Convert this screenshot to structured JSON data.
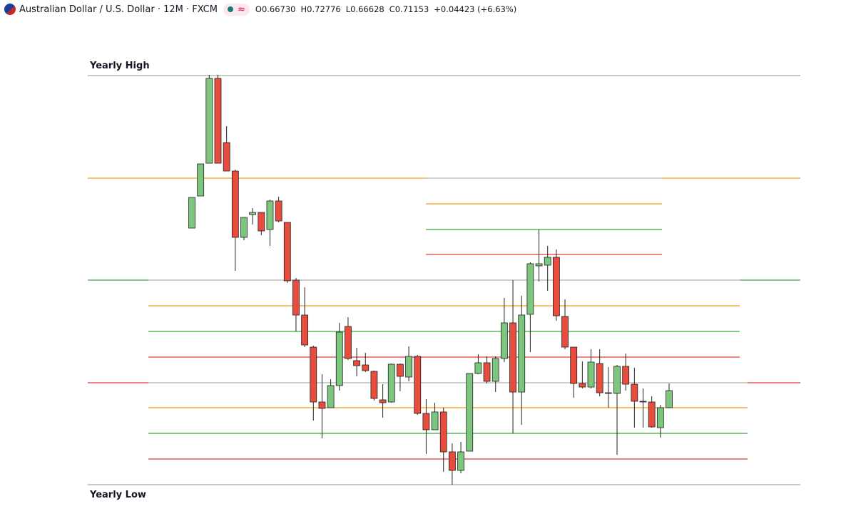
{
  "header": {
    "title": "Australian Dollar / U.S. Dollar · 12M · FXCM",
    "ohlc": [
      {
        "key": "O",
        "value": "0.66730"
      },
      {
        "key": "H",
        "value": "0.72776"
      },
      {
        "key": "L",
        "value": "0.66628"
      },
      {
        "key": "C",
        "value": "0.71153"
      }
    ],
    "change": "+0.04423 (+6.63%)"
  },
  "chart_data": {
    "type": "candlestick",
    "ylim": [
      0.435,
      1.14
    ],
    "up_color": "#7dc67e",
    "down_color": "#e74c3c",
    "levels": [
      {
        "value": 1.074,
        "color": "#a8a8a8",
        "label": "Yearly High"
      },
      {
        "value": 0.93,
        "color": "#f39c12",
        "inner_color": "#b0b0b0"
      },
      {
        "value": 0.894,
        "color": "#f39c12"
      },
      {
        "value": 0.858,
        "color": "#3aa63a"
      },
      {
        "value": 0.823,
        "color": "#e53935"
      },
      {
        "value": 0.787,
        "color": "#3aa63a",
        "inner_color": "#b0b0b0"
      },
      {
        "value": 0.751,
        "color": "#f39c12"
      },
      {
        "value": 0.715,
        "color": "#3aa63a"
      },
      {
        "value": 0.679,
        "color": "#e53935"
      },
      {
        "value": 0.643,
        "color": "#e53935",
        "inner_color": "#b0b0b0"
      },
      {
        "value": 0.608,
        "color": "#f39c12"
      },
      {
        "value": 0.572,
        "color": "#3aa63a"
      },
      {
        "value": 0.536,
        "color": "#e53935"
      },
      {
        "value": 0.5,
        "color": "#a8a8a8",
        "label": "Yearly Low"
      }
    ],
    "open": [
      0.86,
      0.905,
      0.951,
      1.07,
      0.98,
      0.94,
      0.847,
      0.879,
      0.882,
      0.858,
      0.898,
      0.868,
      0.787,
      0.738,
      0.693,
      0.616,
      0.608,
      0.639,
      0.722,
      0.674,
      0.668,
      0.659,
      0.619,
      0.616,
      0.669,
      0.651,
      0.68,
      0.6,
      0.577,
      0.602,
      0.546,
      0.52,
      0.547,
      0.656,
      0.671,
      0.645,
      0.677,
      0.727,
      0.63,
      0.739,
      0.807,
      0.808,
      0.819,
      0.736,
      0.693,
      0.642,
      0.637,
      0.67,
      0.629,
      0.628,
      0.666,
      0.641,
      0.617,
      0.616,
      0.58,
      0.608
    ],
    "high": [
      0.903,
      0.95,
      1.075,
      1.075,
      1.003,
      0.942,
      0.875,
      0.888,
      0.882,
      0.9,
      0.904,
      0.868,
      0.79,
      0.777,
      0.695,
      0.655,
      0.648,
      0.727,
      0.735,
      0.692,
      0.685,
      0.66,
      0.641,
      0.67,
      0.67,
      0.694,
      0.682,
      0.62,
      0.615,
      0.608,
      0.558,
      0.56,
      0.656,
      0.683,
      0.68,
      0.68,
      0.762,
      0.787,
      0.765,
      0.812,
      0.858,
      0.835,
      0.83,
      0.76,
      0.693,
      0.673,
      0.69,
      0.69,
      0.665,
      0.668,
      0.684,
      0.664,
      0.635,
      0.624,
      0.612,
      0.642
    ],
    "low": [
      0.86,
      0.905,
      0.951,
      0.951,
      0.94,
      0.8,
      0.843,
      0.865,
      0.85,
      0.835,
      0.868,
      0.783,
      0.715,
      0.693,
      0.59,
      0.565,
      0.608,
      0.632,
      0.675,
      0.652,
      0.658,
      0.618,
      0.594,
      0.615,
      0.631,
      0.645,
      0.598,
      0.543,
      0.577,
      0.518,
      0.5,
      0.516,
      0.547,
      0.655,
      0.642,
      0.63,
      0.672,
      0.572,
      0.584,
      0.686,
      0.785,
      0.772,
      0.73,
      0.69,
      0.622,
      0.635,
      0.635,
      0.624,
      0.608,
      0.542,
      0.632,
      0.58,
      0.58,
      0.58,
      0.566,
      0.608
    ],
    "close": [
      0.903,
      0.95,
      1.07,
      0.951,
      0.94,
      0.847,
      0.875,
      0.882,
      0.856,
      0.898,
      0.87,
      0.786,
      0.738,
      0.696,
      0.616,
      0.607,
      0.639,
      0.714,
      0.677,
      0.667,
      0.66,
      0.621,
      0.615,
      0.669,
      0.652,
      0.68,
      0.6,
      0.577,
      0.602,
      0.546,
      0.52,
      0.546,
      0.656,
      0.671,
      0.645,
      0.677,
      0.727,
      0.63,
      0.738,
      0.81,
      0.81,
      0.819,
      0.737,
      0.693,
      0.642,
      0.637,
      0.672,
      0.629,
      0.628,
      0.666,
      0.641,
      0.617,
      0.616,
      0.581,
      0.608,
      0.632
    ]
  }
}
